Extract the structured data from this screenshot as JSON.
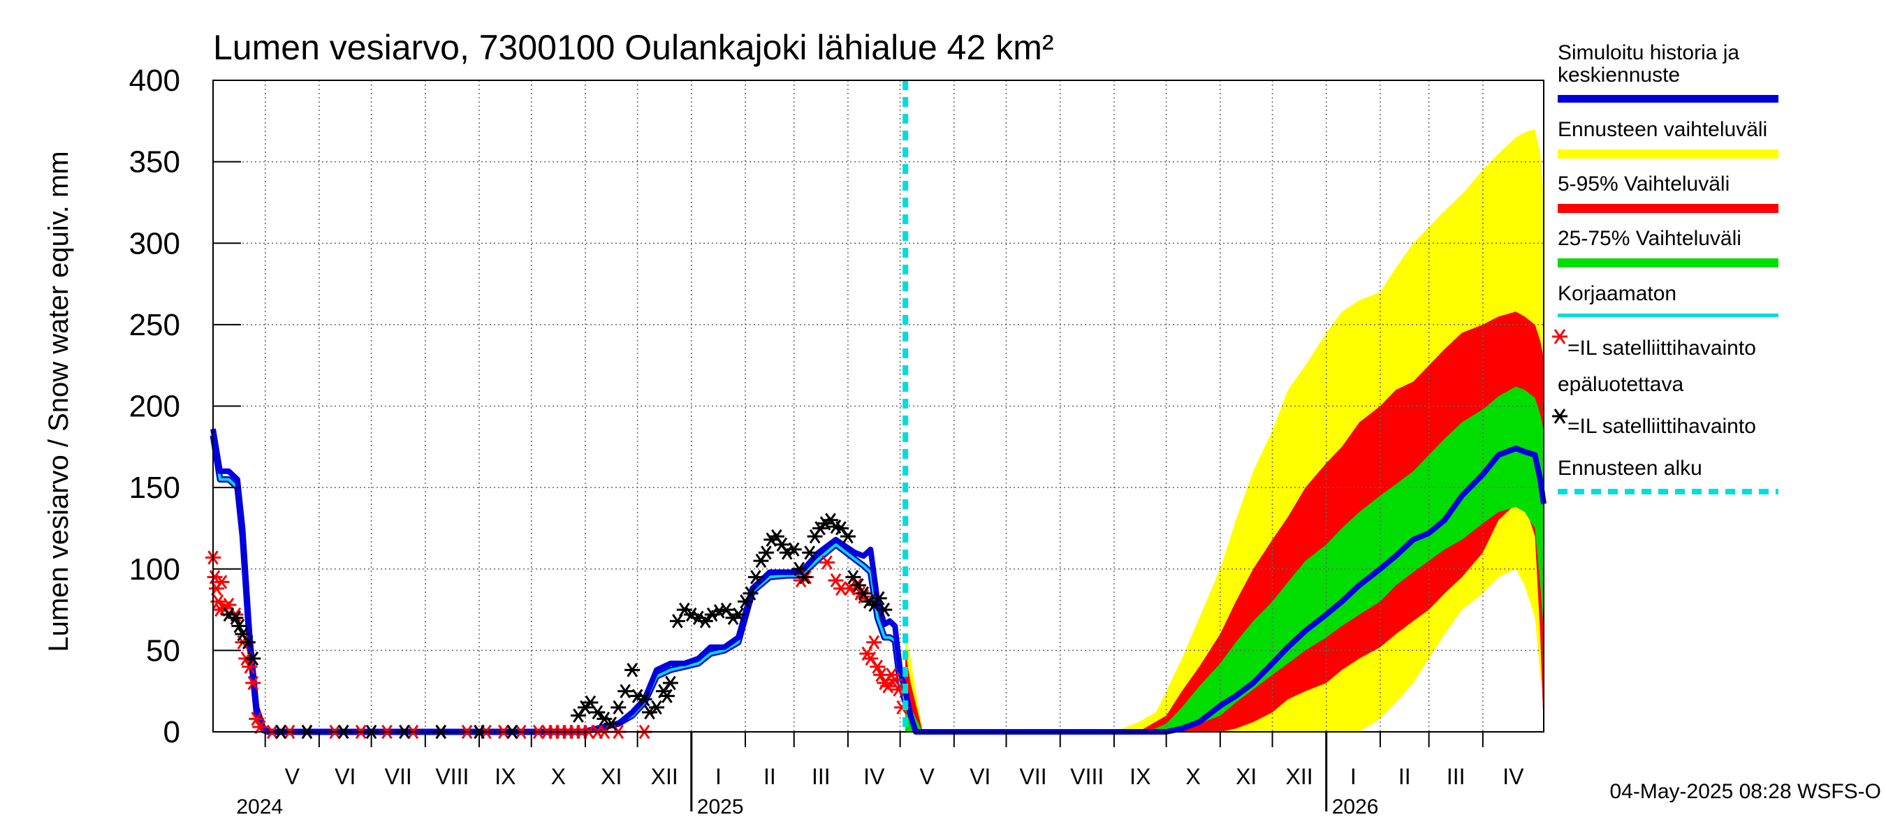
{
  "chart_data": {
    "type": "area",
    "title": "Lumen vesiarvo, 7300100 Oulankajoki lähialue 42 km²",
    "ylabel": "Lumen vesiarvo / Snow water equiv.    mm",
    "xlabel": "",
    "ylim": [
      0,
      400
    ],
    "xlim": [
      "2024-04-01",
      "2026-05-06"
    ],
    "y_ticks": [
      0,
      50,
      100,
      150,
      200,
      250,
      300,
      350,
      400
    ],
    "grid": true,
    "legend_placement": "right",
    "forecast_start": "2025-05-04",
    "months": [
      {
        "label": "V",
        "date": "2024-05-01"
      },
      {
        "label": "VI",
        "date": "2024-06-01"
      },
      {
        "label": "VII",
        "date": "2024-07-01"
      },
      {
        "label": "VIII",
        "date": "2024-08-01"
      },
      {
        "label": "IX",
        "date": "2024-09-01"
      },
      {
        "label": "X",
        "date": "2024-10-01"
      },
      {
        "label": "XI",
        "date": "2024-11-01"
      },
      {
        "label": "XII",
        "date": "2024-12-01"
      },
      {
        "label": "I",
        "date": "2025-01-01"
      },
      {
        "label": "II",
        "date": "2025-02-01"
      },
      {
        "label": "III",
        "date": "2025-03-01"
      },
      {
        "label": "IV",
        "date": "2025-04-01"
      },
      {
        "label": "V",
        "date": "2025-05-01"
      },
      {
        "label": "VI",
        "date": "2025-06-01"
      },
      {
        "label": "VII",
        "date": "2025-07-01"
      },
      {
        "label": "VIII",
        "date": "2025-08-01"
      },
      {
        "label": "IX",
        "date": "2025-09-01"
      },
      {
        "label": "X",
        "date": "2025-10-01"
      },
      {
        "label": "XI",
        "date": "2025-11-01"
      },
      {
        "label": "XII",
        "date": "2025-12-01"
      },
      {
        "label": "I",
        "date": "2026-01-01"
      },
      {
        "label": "II",
        "date": "2026-02-01"
      },
      {
        "label": "III",
        "date": "2026-03-01"
      },
      {
        "label": "IV",
        "date": "2026-04-01"
      }
    ],
    "years": [
      {
        "label": "2024",
        "date": "2024-05-01"
      },
      {
        "label": "2025",
        "date": "2025-01-01"
      },
      {
        "label": "2026",
        "date": "2026-01-01"
      }
    ],
    "series": [
      {
        "name": "Simuloitu historia ja keskiennuste",
        "color": "#0000dd",
        "x": [
          "2024-04-01",
          "2024-04-05",
          "2024-04-10",
          "2024-04-15",
          "2024-04-18",
          "2024-04-22",
          "2024-04-26",
          "2024-04-30",
          "2024-05-03",
          "2024-05-08",
          "2024-10-31",
          "2024-11-20",
          "2024-11-28",
          "2024-12-05",
          "2024-12-12",
          "2024-12-20",
          "2024-12-28",
          "2025-01-05",
          "2025-01-12",
          "2025-01-20",
          "2025-01-28",
          "2025-02-05",
          "2025-02-15",
          "2025-02-25",
          "2025-03-05",
          "2025-03-15",
          "2025-03-25",
          "2025-04-05",
          "2025-04-10",
          "2025-04-14",
          "2025-04-18",
          "2025-04-22",
          "2025-04-25",
          "2025-04-28",
          "2025-05-01",
          "2025-05-04",
          "2025-05-07",
          "2025-05-10",
          "2025-05-14",
          "2025-09-15",
          "2025-10-01",
          "2025-10-10",
          "2025-10-20",
          "2025-11-01",
          "2025-11-10",
          "2025-11-20",
          "2025-12-01",
          "2025-12-10",
          "2025-12-20",
          "2026-01-01",
          "2026-01-10",
          "2026-01-20",
          "2026-02-01",
          "2026-02-10",
          "2026-02-20",
          "2026-03-01",
          "2026-03-10",
          "2026-03-20",
          "2026-04-01",
          "2026-04-10",
          "2026-04-20",
          "2026-04-25",
          "2026-05-01",
          "2026-05-04",
          "2026-05-06"
        ],
        "y": [
          186,
          160,
          160,
          155,
          125,
          60,
          15,
          2,
          0,
          0,
          0,
          5,
          12,
          20,
          38,
          42,
          42,
          45,
          52,
          52,
          58,
          88,
          98,
          98,
          98,
          110,
          118,
          110,
          108,
          112,
          80,
          66,
          68,
          65,
          38,
          25,
          10,
          0,
          0,
          0,
          0,
          2,
          6,
          16,
          22,
          30,
          42,
          52,
          62,
          72,
          80,
          90,
          100,
          108,
          118,
          122,
          130,
          145,
          158,
          170,
          174,
          172,
          170,
          155,
          140
        ]
      },
      {
        "name": "Korjaamaton",
        "color": "#00dddd",
        "x": [
          "2024-04-01",
          "2024-04-05",
          "2024-04-10",
          "2024-04-15",
          "2024-04-18",
          "2024-04-22",
          "2024-04-26",
          "2024-04-30",
          "2024-05-03",
          "2024-10-31",
          "2024-11-20",
          "2024-11-28",
          "2024-12-05",
          "2024-12-12",
          "2024-12-20",
          "2024-12-28",
          "2025-01-05",
          "2025-01-12",
          "2025-01-20",
          "2025-01-28",
          "2025-02-05",
          "2025-02-15",
          "2025-02-25",
          "2025-03-05",
          "2025-03-15",
          "2025-03-25",
          "2025-04-05",
          "2025-04-10",
          "2025-04-14",
          "2025-04-18",
          "2025-04-22",
          "2025-04-25",
          "2025-04-28",
          "2025-05-01",
          "2025-05-04"
        ],
        "y": [
          182,
          155,
          155,
          150,
          120,
          55,
          12,
          1,
          0,
          0,
          5,
          10,
          18,
          34,
          38,
          40,
          42,
          48,
          50,
          55,
          86,
          95,
          96,
          96,
          106,
          115,
          106,
          102,
          98,
          70,
          58,
          58,
          56,
          30,
          18
        ]
      },
      {
        "name": "Ennusteen vaihteluväli",
        "color": "#ffff00",
        "band": true,
        "x": [
          "2025-05-04",
          "2025-05-07",
          "2025-05-14",
          "2025-09-01",
          "2025-09-15",
          "2025-09-25",
          "2025-10-01",
          "2025-10-10",
          "2025-10-20",
          "2025-11-01",
          "2025-11-10",
          "2025-11-20",
          "2025-12-01",
          "2025-12-10",
          "2025-12-20",
          "2026-01-01",
          "2026-01-10",
          "2026-01-20",
          "2026-02-01",
          "2026-02-10",
          "2026-02-20",
          "2026-03-01",
          "2026-03-10",
          "2026-03-20",
          "2026-04-01",
          "2026-04-10",
          "2026-04-20",
          "2026-04-25",
          "2026-05-01",
          "2026-05-04",
          "2026-05-06"
        ],
        "lower": [
          0,
          0,
          0,
          0,
          0,
          0,
          0,
          0,
          0,
          0,
          0,
          0,
          0,
          0,
          0,
          0,
          0,
          0,
          8,
          18,
          30,
          45,
          60,
          75,
          85,
          95,
          100,
          90,
          70,
          35,
          20
        ],
        "upper": [
          60,
          45,
          0,
          0,
          6,
          12,
          25,
          45,
          70,
          100,
          130,
          160,
          185,
          210,
          225,
          245,
          258,
          265,
          270,
          285,
          300,
          310,
          320,
          330,
          345,
          355,
          365,
          368,
          370,
          355,
          330
        ]
      },
      {
        "name": "5-95% Vaihteluväli",
        "color": "#ff0000",
        "band": true,
        "x": [
          "2025-05-04",
          "2025-05-07",
          "2025-05-14",
          "2025-09-15",
          "2025-10-01",
          "2025-10-10",
          "2025-10-20",
          "2025-11-01",
          "2025-11-10",
          "2025-11-20",
          "2025-12-01",
          "2025-12-10",
          "2025-12-20",
          "2026-01-01",
          "2026-01-10",
          "2026-01-20",
          "2026-02-01",
          "2026-02-10",
          "2026-02-20",
          "2026-03-01",
          "2026-03-10",
          "2026-03-20",
          "2026-04-01",
          "2026-04-10",
          "2026-04-20",
          "2026-04-25",
          "2026-05-01",
          "2026-05-04",
          "2026-05-06"
        ],
        "lower": [
          0,
          0,
          0,
          0,
          0,
          0,
          0,
          0,
          2,
          6,
          12,
          20,
          25,
          30,
          38,
          45,
          52,
          60,
          68,
          75,
          85,
          95,
          110,
          130,
          140,
          140,
          120,
          60,
          0
        ],
        "upper": [
          50,
          30,
          0,
          0,
          10,
          25,
          40,
          60,
          80,
          100,
          118,
          132,
          150,
          165,
          175,
          190,
          200,
          210,
          215,
          225,
          235,
          245,
          250,
          255,
          258,
          255,
          250,
          240,
          230
        ]
      },
      {
        "name": "25-75% Vaihteluväli",
        "color": "#00dd00",
        "band": true,
        "x": [
          "2025-05-04",
          "2025-05-07",
          "2025-05-14",
          "2025-09-20",
          "2025-10-01",
          "2025-10-10",
          "2025-10-20",
          "2025-11-01",
          "2025-11-10",
          "2025-11-20",
          "2025-12-01",
          "2025-12-10",
          "2025-12-20",
          "2026-01-01",
          "2026-01-10",
          "2026-01-20",
          "2026-02-01",
          "2026-02-10",
          "2026-02-20",
          "2026-03-01",
          "2026-03-10",
          "2026-03-20",
          "2026-04-01",
          "2026-04-10",
          "2026-04-20",
          "2026-04-25",
          "2026-05-01",
          "2026-05-04",
          "2026-05-06"
        ],
        "lower": [
          0,
          0,
          0,
          0,
          0,
          2,
          5,
          10,
          18,
          26,
          35,
          42,
          50,
          58,
          65,
          72,
          80,
          90,
          98,
          105,
          112,
          118,
          128,
          135,
          138,
          135,
          125,
          90,
          60
        ],
        "upper": [
          30,
          15,
          0,
          0,
          5,
          15,
          28,
          42,
          55,
          68,
          80,
          92,
          105,
          115,
          125,
          135,
          145,
          152,
          160,
          170,
          180,
          190,
          198,
          206,
          212,
          210,
          205,
          195,
          185
        ]
      }
    ],
    "observations": [
      {
        "name": "=IL satelliittihavainto epäluotettava",
        "color": "#ff0000",
        "marker": "*",
        "x": [
          "2024-04-01",
          "2024-04-02",
          "2024-04-03",
          "2024-04-04",
          "2024-04-05",
          "2024-04-06",
          "2024-04-08",
          "2024-04-10",
          "2024-04-14",
          "2024-04-18",
          "2024-04-20",
          "2024-04-22",
          "2024-04-24",
          "2024-04-26",
          "2024-04-28",
          "2024-05-05",
          "2024-05-15",
          "2024-05-25",
          "2024-06-10",
          "2024-06-25",
          "2024-07-10",
          "2024-07-25",
          "2024-08-10",
          "2024-08-25",
          "2024-09-05",
          "2024-09-15",
          "2024-09-25",
          "2024-10-05",
          "2024-10-10",
          "2024-10-14",
          "2024-10-18",
          "2024-10-22",
          "2024-10-26",
          "2024-10-30",
          "2024-11-03",
          "2024-11-08",
          "2024-11-12",
          "2024-11-20",
          "2024-12-05",
          "2025-03-05",
          "2025-03-08",
          "2025-03-20",
          "2025-03-25",
          "2025-03-28",
          "2025-04-02",
          "2025-04-06",
          "2025-04-08",
          "2025-04-10",
          "2025-04-12",
          "2025-04-14",
          "2025-04-16",
          "2025-04-18",
          "2025-04-20",
          "2025-04-22",
          "2025-04-24",
          "2025-04-26",
          "2025-04-28",
          "2025-04-30",
          "2025-05-02"
        ],
        "y": [
          107,
          95,
          88,
          80,
          75,
          92,
          76,
          78,
          72,
          55,
          45,
          40,
          30,
          8,
          3,
          0,
          0,
          0,
          0,
          0,
          0,
          0,
          0,
          0,
          0,
          0,
          0,
          0,
          0,
          0,
          0,
          0,
          0,
          0,
          0,
          0,
          0,
          0,
          0,
          93,
          95,
          104,
          93,
          88,
          88,
          90,
          85,
          83,
          48,
          45,
          55,
          40,
          35,
          30,
          28,
          35,
          32,
          26,
          15
        ]
      },
      {
        "name": "=IL satelliittihavainto",
        "color": "#000000",
        "marker": "*",
        "x": [
          "2024-04-10",
          "2024-04-14",
          "2024-04-16",
          "2024-04-18",
          "2024-04-21",
          "2024-04-24",
          "2024-05-10",
          "2024-05-25",
          "2024-06-15",
          "2024-07-01",
          "2024-07-20",
          "2024-08-10",
          "2024-09-01",
          "2024-09-20",
          "2024-10-28",
          "2024-11-01",
          "2024-11-04",
          "2024-11-08",
          "2024-11-12",
          "2024-11-16",
          "2024-11-20",
          "2024-11-24",
          "2024-11-28",
          "2024-12-01",
          "2024-12-05",
          "2024-12-08",
          "2024-12-12",
          "2024-12-16",
          "2024-12-18",
          "2024-12-20",
          "2024-12-24",
          "2024-12-28",
          "2025-01-01",
          "2025-01-05",
          "2025-01-09",
          "2025-01-13",
          "2025-01-17",
          "2025-01-21",
          "2025-01-25",
          "2025-01-28",
          "2025-02-01",
          "2025-02-04",
          "2025-02-07",
          "2025-02-10",
          "2025-02-13",
          "2025-02-16",
          "2025-02-19",
          "2025-02-22",
          "2025-02-25",
          "2025-03-01",
          "2025-03-04",
          "2025-03-07",
          "2025-03-10",
          "2025-03-13",
          "2025-03-16",
          "2025-03-19",
          "2025-03-22",
          "2025-03-25",
          "2025-03-28",
          "2025-04-01",
          "2025-04-04",
          "2025-04-07",
          "2025-04-10",
          "2025-04-13",
          "2025-04-16",
          "2025-04-19",
          "2025-04-22"
        ],
        "y": [
          72,
          70,
          65,
          60,
          55,
          45,
          0,
          0,
          0,
          0,
          0,
          0,
          0,
          0,
          10,
          15,
          18,
          12,
          8,
          5,
          15,
          25,
          38,
          22,
          20,
          12,
          15,
          25,
          22,
          30,
          68,
          75,
          72,
          70,
          68,
          72,
          74,
          75,
          70,
          72,
          80,
          85,
          95,
          105,
          110,
          118,
          120,
          115,
          110,
          112,
          100,
          95,
          110,
          120,
          125,
          128,
          130,
          126,
          125,
          120,
          95,
          90,
          85,
          80,
          78,
          82,
          75
        ]
      }
    ],
    "legend": [
      "Simuloitu historia ja keskiennuste",
      "Ennusteen vaihteluväli",
      "5-95% Vaihteluväli",
      "25-75% Vaihteluväli",
      "Korjaamaton",
      "=IL satelliittihavainto epäluotettava",
      "=IL satelliittihavainto",
      "Ennusteen alku"
    ],
    "forecast_start_color": "#00dddd"
  },
  "legend_items": {
    "simulated": [
      "Simuloitu historia ja",
      "keskiennuste"
    ],
    "forecast_range": "Ennusteen vaihteluväli",
    "range_5_95": "5-95% Vaihteluväli",
    "range_25_75": "25-75% Vaihteluväli",
    "uncorrected": "Korjaamaton",
    "sat_unreliable": [
      "=IL satelliittihavainto",
      "epäluotettava"
    ],
    "sat": "=IL satelliittihavainto",
    "forecast_start": "Ennusteen alku"
  },
  "footer": "04-May-2025 08:28 WSFS-O"
}
